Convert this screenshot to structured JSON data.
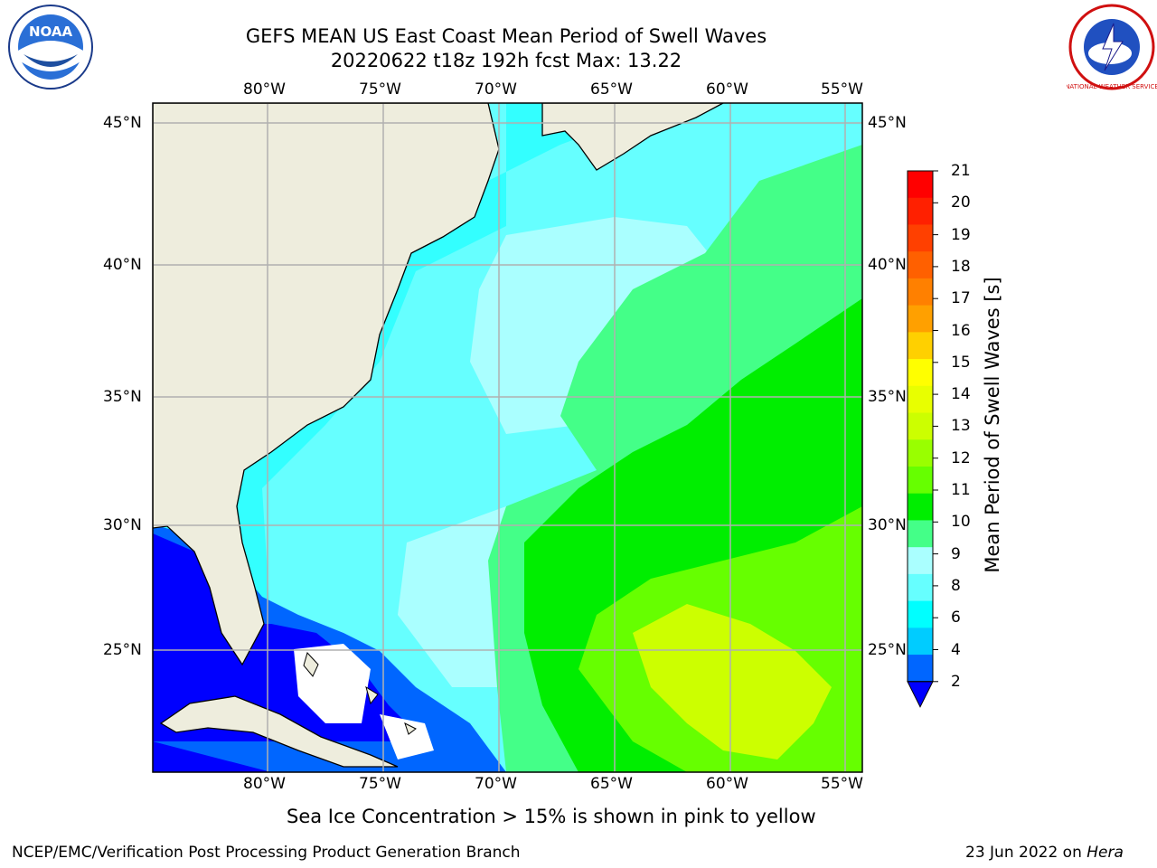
{
  "header": {
    "title_line1": "GEFS MEAN US East Coast Mean Period of Swell Waves",
    "title_line2": "20220622 t18z 192h fcst   Max: 13.22"
  },
  "logos": {
    "left": {
      "icon": "noaa-logo",
      "text": "NOAA"
    },
    "right": {
      "icon": "national-weather-service-logo",
      "text": "NATIONAL WEATHER SERVICE"
    }
  },
  "map": {
    "lon_labels": [
      "80°W",
      "75°W",
      "70°W",
      "65°W",
      "60°W",
      "55°W"
    ],
    "lat_labels": [
      "45°N",
      "40°N",
      "35°N",
      "30°N",
      "25°N"
    ],
    "colors": {
      "land": "#eeeddd",
      "coast": "#000000",
      "grid": "#b0b0b0",
      "nodata": "#ffffff"
    }
  },
  "colorbar": {
    "label": "Mean Period of Swell Waves [s]",
    "ticks": [
      "21",
      "20",
      "19",
      "18",
      "17",
      "16",
      "15",
      "14",
      "13",
      "12",
      "11",
      "10",
      "9",
      "8",
      "6",
      "4",
      "2"
    ],
    "colors": [
      "#ff0000",
      "#ff2000",
      "#ff4000",
      "#ff6000",
      "#ff8000",
      "#ffa000",
      "#ffd000",
      "#ffff00",
      "#e8ff00",
      "#ccff00",
      "#99ff00",
      "#66ff00",
      "#00ee00",
      "#44ff88",
      "#aaffff",
      "#66ffff",
      "#00ffff",
      "#00ccff",
      "#0066ff"
    ],
    "extend_color": "#0000ff"
  },
  "footer": {
    "note": "Sea Ice Concentration > 15% is shown in pink to yellow",
    "credit": "NCEP/EMC/Verification Post Processing Product Generation Branch",
    "date": "23 Jun 2022 on ",
    "host": "Hera"
  }
}
